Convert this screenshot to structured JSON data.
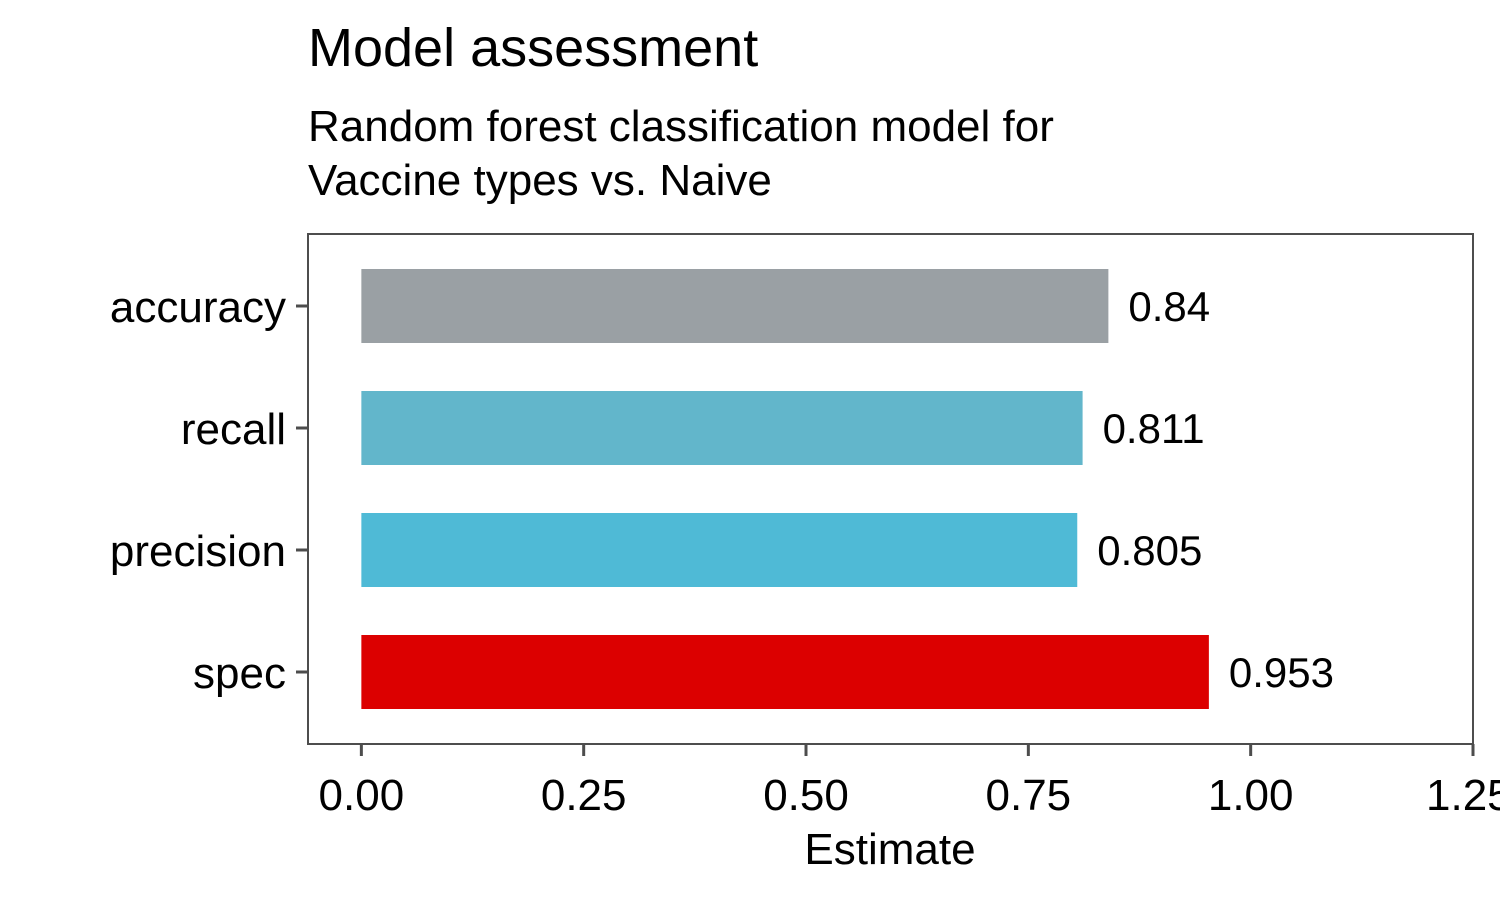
{
  "chart_data": {
    "type": "bar",
    "orientation": "horizontal",
    "title": "Model assessment",
    "subtitle_lines": [
      "Random forest classification model for",
      "Vaccine types vs. Naive"
    ],
    "xlabel": "Estimate",
    "ylabel": "",
    "xlim": [
      -0.06,
      1.25
    ],
    "x_ticks": [
      0.0,
      0.25,
      0.5,
      0.75,
      1.0,
      1.25
    ],
    "x_tick_labels": [
      "0.00",
      "0.25",
      "0.50",
      "0.75",
      "1.00",
      "1.25"
    ],
    "categories": [
      "accuracy",
      "recall",
      "precision",
      "spec"
    ],
    "values": [
      0.84,
      0.811,
      0.805,
      0.953
    ],
    "value_labels": [
      "0.84",
      "0.811",
      "0.805",
      "0.953"
    ],
    "colors": [
      "#9aa0a4",
      "#62b6cb",
      "#4fbad6",
      "#dc0000"
    ],
    "grid": false,
    "legend": "none"
  }
}
